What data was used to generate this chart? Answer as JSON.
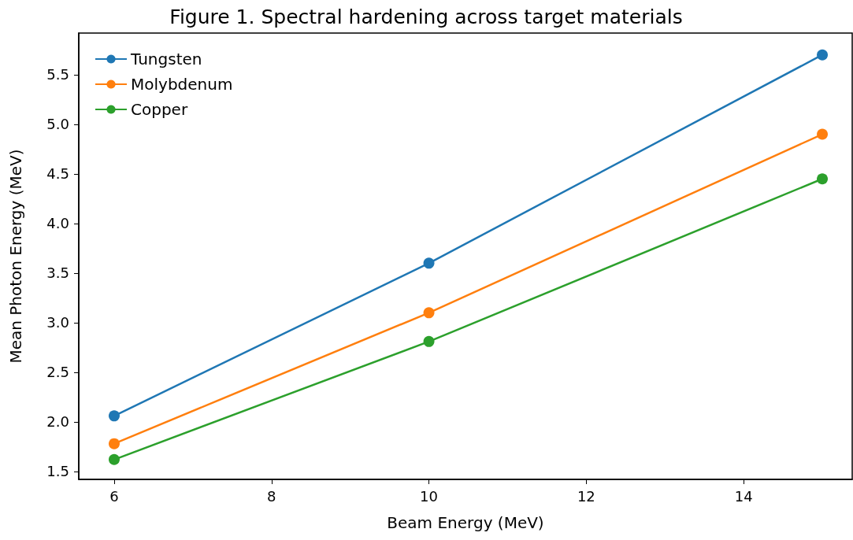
{
  "chart_data": {
    "type": "line",
    "title": "Figure 1. Spectral hardening across target materials",
    "xlabel": "Beam Energy (MeV)",
    "ylabel": "Mean Photon Energy (MeV)",
    "x": [
      6,
      10,
      15
    ],
    "series": [
      {
        "name": "Tungsten",
        "color": "#1f77b4",
        "values": [
          2.06,
          3.6,
          5.7
        ]
      },
      {
        "name": "Molybdenum",
        "color": "#ff7f0e",
        "values": [
          1.78,
          3.1,
          4.9
        ]
      },
      {
        "name": "Copper",
        "color": "#2ca02c",
        "values": [
          1.62,
          2.81,
          4.45
        ]
      }
    ],
    "xlim": [
      5.55,
      15.38
    ],
    "xticks": [
      6,
      8,
      10,
      12,
      14
    ],
    "ylim": [
      1.42,
      5.92
    ],
    "yticks": [
      1.5,
      {
        "value": 2,
        "label": "2.0"
      },
      2.5,
      {
        "value": 3,
        "label": "3.0"
      },
      3.5,
      {
        "value": 4,
        "label": "4.0"
      },
      4.5,
      {
        "value": 5,
        "label": "5.0"
      },
      5.5
    ],
    "legend": "top left",
    "grid": false,
    "marker": "circle",
    "line_style": "solid"
  }
}
